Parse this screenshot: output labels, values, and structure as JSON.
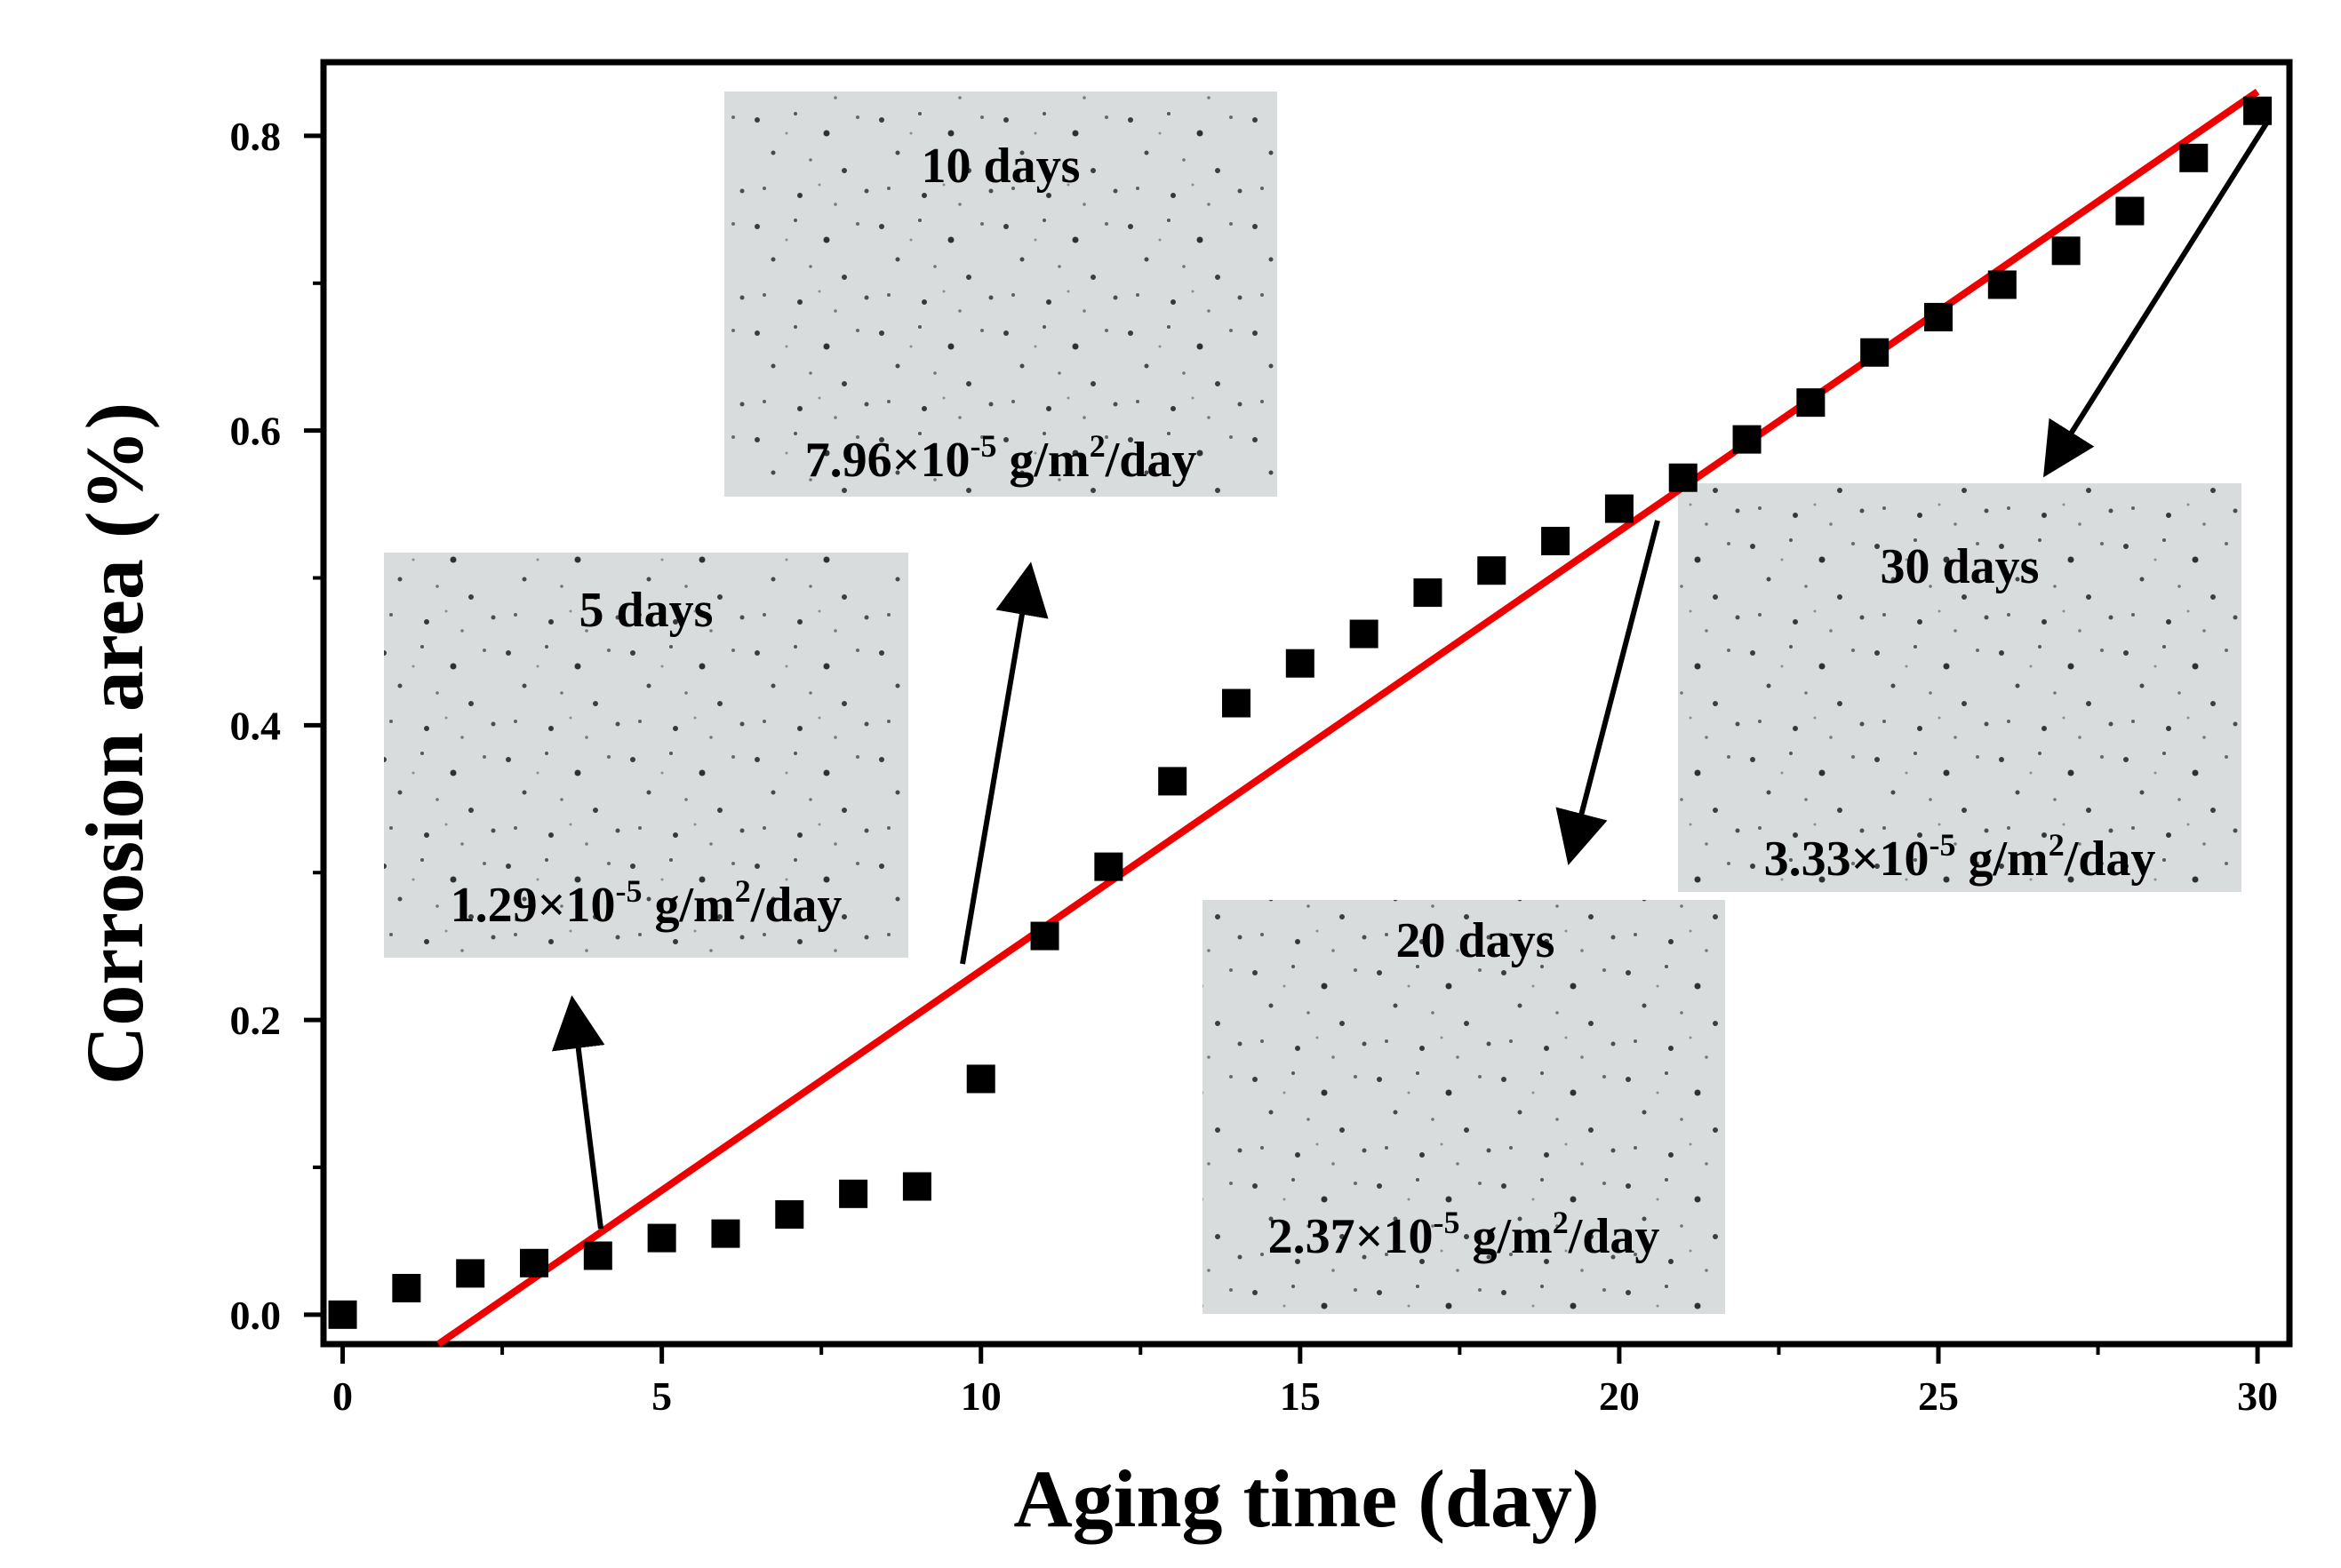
{
  "chart_data": {
    "type": "scatter",
    "title": "",
    "xlabel": "Aging time (day)",
    "ylabel": "Corrosion area (%)",
    "xlim": [
      -0.3,
      30.5
    ],
    "ylim": [
      -0.02,
      0.85
    ],
    "x_ticks": [
      0,
      5,
      10,
      15,
      20,
      25,
      30
    ],
    "x_tick_labels": [
      "0",
      "5",
      "10",
      "15",
      "20",
      "25",
      "30"
    ],
    "y_ticks": [
      0.0,
      0.2,
      0.4,
      0.6,
      0.8
    ],
    "y_tick_labels": [
      "0.0",
      "0.2",
      "0.4",
      "0.6",
      "0.8"
    ],
    "series": [
      {
        "name": "Corrosion area",
        "marker": "square",
        "color": "#000000",
        "x": [
          0,
          1,
          2,
          3,
          4,
          5,
          6,
          7,
          8,
          9,
          10,
          11,
          12,
          13,
          14,
          15,
          16,
          17,
          18,
          19,
          20,
          21,
          22,
          23,
          24,
          25,
          26,
          27,
          28,
          29,
          30
        ],
        "y": [
          0.0,
          0.018,
          0.028,
          0.035,
          0.04,
          0.052,
          0.055,
          0.068,
          0.082,
          0.087,
          0.16,
          0.257,
          0.304,
          0.362,
          0.415,
          0.442,
          0.462,
          0.49,
          0.505,
          0.525,
          0.547,
          0.568,
          0.594,
          0.619,
          0.653,
          0.677,
          0.699,
          0.722,
          0.749,
          0.785,
          0.817
        ]
      }
    ],
    "fit_line": {
      "color": "#ee0000",
      "x": [
        1.5,
        30.0
      ],
      "y": [
        -0.02,
        0.83
      ]
    },
    "insets": [
      {
        "title": "5 days",
        "rate_value": "1.29×10",
        "rate_exp": "-5",
        "rate_unit_a": " g/m",
        "rate_unit_exp": "2",
        "rate_unit_b": "/day"
      },
      {
        "title": "10 days",
        "rate_value": "7.96×10",
        "rate_exp": "-5",
        "rate_unit_a": " g/m",
        "rate_unit_exp": "2",
        "rate_unit_b": "/day"
      },
      {
        "title": "20 days",
        "rate_value": "2.37×10",
        "rate_exp": "-5",
        "rate_unit_a": " g/m",
        "rate_unit_exp": "2",
        "rate_unit_b": "/day"
      },
      {
        "title": "30 days",
        "rate_value": "3.33×10",
        "rate_exp": "-5",
        "rate_unit_a": " g/m",
        "rate_unit_exp": "2",
        "rate_unit_b": "/day"
      }
    ]
  }
}
